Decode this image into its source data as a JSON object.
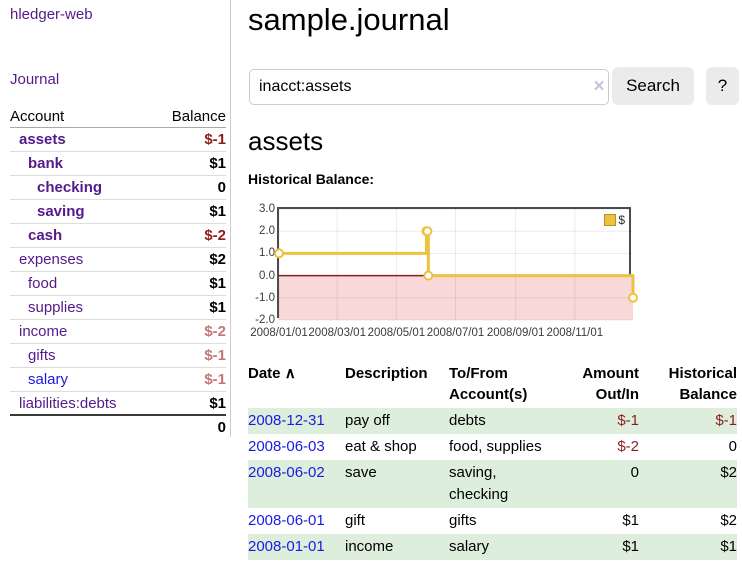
{
  "app": {
    "title": "hledger-web"
  },
  "sidebar": {
    "journal_link": "Journal",
    "accounts": {
      "col_account": "Account",
      "col_balance": "Balance",
      "rows": [
        {
          "name": "assets",
          "balance": "$-1"
        },
        {
          "name": "bank",
          "balance": "$1"
        },
        {
          "name": "checking",
          "balance": "0"
        },
        {
          "name": "saving",
          "balance": "$1"
        },
        {
          "name": "cash",
          "balance": "$-2"
        },
        {
          "name": "expenses",
          "balance": "$2"
        },
        {
          "name": "food",
          "balance": "$1"
        },
        {
          "name": "supplies",
          "balance": "$1"
        },
        {
          "name": "income",
          "balance": "$-2"
        },
        {
          "name": "gifts",
          "balance": "$-1"
        },
        {
          "name": "salary",
          "balance": "$-1"
        },
        {
          "name": "liabilities:debts",
          "balance": "$1"
        }
      ],
      "total_balance": "0"
    }
  },
  "main": {
    "page_title": "sample.journal",
    "search": {
      "value": "inacct:assets",
      "clear_icon": "×",
      "search_button": "Search",
      "help_button": "?"
    },
    "account_heading": "assets"
  },
  "chart_data": {
    "type": "line",
    "step": true,
    "title": "Historical Balance:",
    "series": [
      {
        "name": "$",
        "color": "#edc240",
        "points": [
          [
            "2008-01-01",
            1
          ],
          [
            "2008-06-01",
            2
          ],
          [
            "2008-06-02",
            2
          ],
          [
            "2008-06-03",
            0
          ],
          [
            "2008-12-31",
            -1
          ]
        ]
      }
    ],
    "x_ticks": [
      "2008/01/01",
      "2008/03/01",
      "2008/05/01",
      "2008/07/01",
      "2008/09/01",
      "2008/11/01"
    ],
    "y_ticks": [
      "3.0",
      "2.0",
      "1.0",
      "0.0",
      "-1.0",
      "-2.0"
    ],
    "y_tick_values": [
      3,
      2,
      1,
      0,
      -1,
      -2
    ],
    "ylim": [
      -2,
      3
    ],
    "xlim": [
      "2008-01-01",
      "2008-12-31"
    ],
    "grid": true,
    "legend_position": "top-right",
    "negative_region_color": "#f9d8d8",
    "zero_line_color": "#8b1d1d"
  },
  "register": {
    "headers": {
      "date": "Date",
      "description": "Description",
      "accounts": "To/From Account(s)",
      "amount": "Amount Out/In",
      "balance": "Historical Balance"
    },
    "sort_indicator": "∧",
    "rows": [
      {
        "date": "2008-12-31",
        "description": "pay off",
        "accounts": "debts",
        "amount": "$-1",
        "balance": "$-1"
      },
      {
        "date": "2008-06-03",
        "description": "eat & shop",
        "accounts": "food, supplies",
        "amount": "$-2",
        "balance": "0"
      },
      {
        "date": "2008-06-02",
        "description": "save",
        "accounts": "saving, checking",
        "amount": "0",
        "balance": "$2"
      },
      {
        "date": "2008-06-01",
        "description": "gift",
        "accounts": "gifts",
        "amount": "$1",
        "balance": "$2"
      },
      {
        "date": "2008-01-01",
        "description": "income",
        "accounts": "salary",
        "amount": "$1",
        "balance": "$1"
      }
    ]
  },
  "colors": {
    "link_purple": "#551a8b",
    "link_blue": "#1b1be0",
    "negative_strong": "#8f1d1d",
    "negative_soft": "#c47676",
    "row_stripe_green": "#ddeedd",
    "series_yellow": "#edc240"
  }
}
